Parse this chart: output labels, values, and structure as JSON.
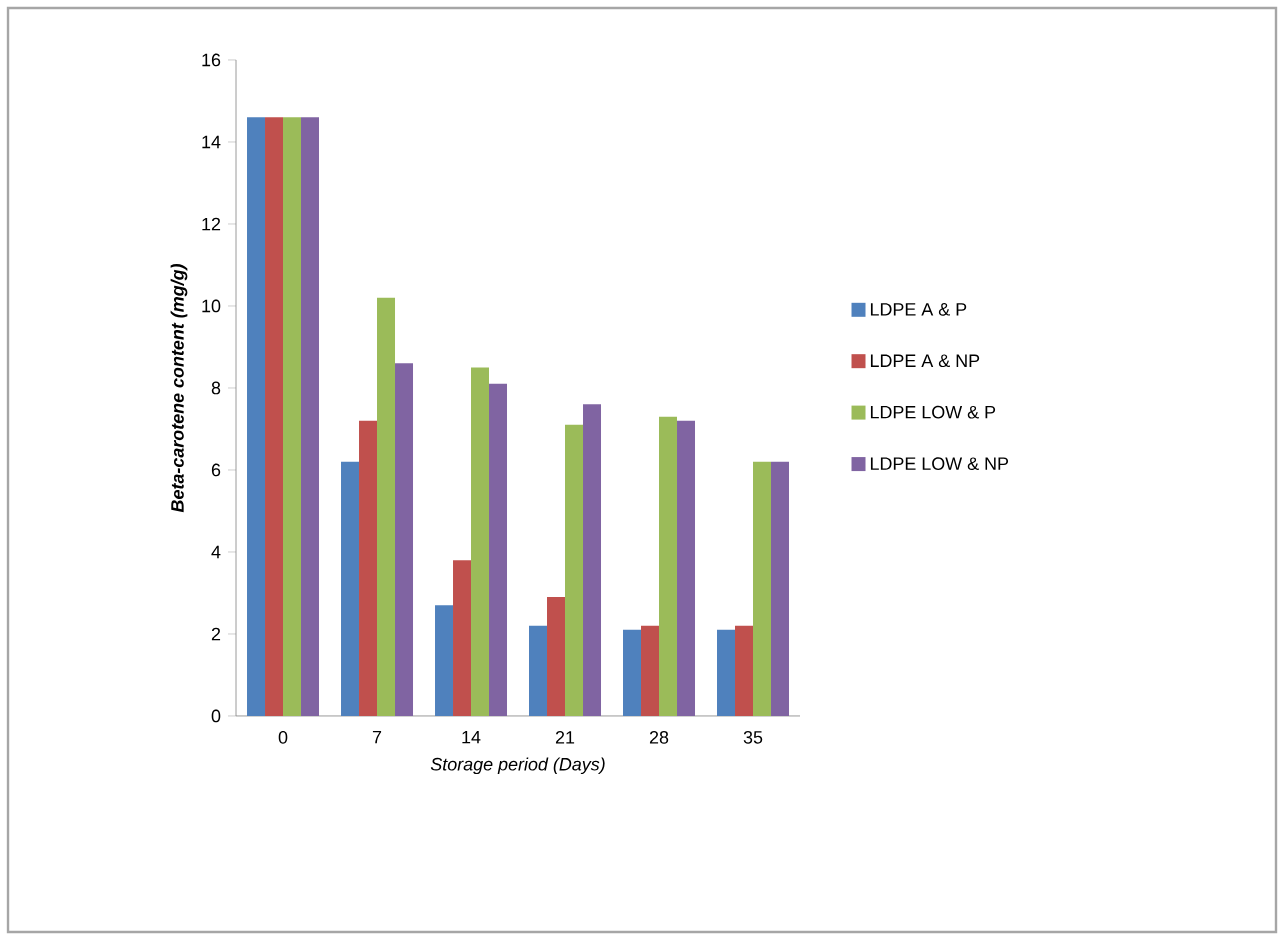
{
  "chart_data": {
    "type": "bar",
    "xlabel": "Storage period (Days)",
    "ylabel": "Beta-carotene content (mg/g)",
    "categories": [
      "0",
      "7",
      "14",
      "21",
      "28",
      "35"
    ],
    "series": [
      {
        "name": "LDPE A & P",
        "color": "#4f81bd",
        "values": [
          14.6,
          6.2,
          2.7,
          2.2,
          2.1,
          2.1
        ]
      },
      {
        "name": "LDPE A & NP",
        "color": "#c0504d",
        "values": [
          14.6,
          7.2,
          3.8,
          2.9,
          2.2,
          2.2
        ]
      },
      {
        "name": "LDPE LOW & P",
        "color": "#9bbb59",
        "values": [
          14.6,
          10.2,
          8.5,
          7.1,
          7.3,
          6.2
        ]
      },
      {
        "name": "LDPE LOW & NP",
        "color": "#8064a2",
        "values": [
          14.6,
          8.6,
          8.1,
          7.6,
          7.2,
          6.2
        ]
      }
    ],
    "ylim": [
      0,
      16
    ],
    "yticks": [
      0,
      2,
      4,
      6,
      8,
      10,
      12,
      14,
      16
    ],
    "grid": false,
    "legend": "right"
  }
}
